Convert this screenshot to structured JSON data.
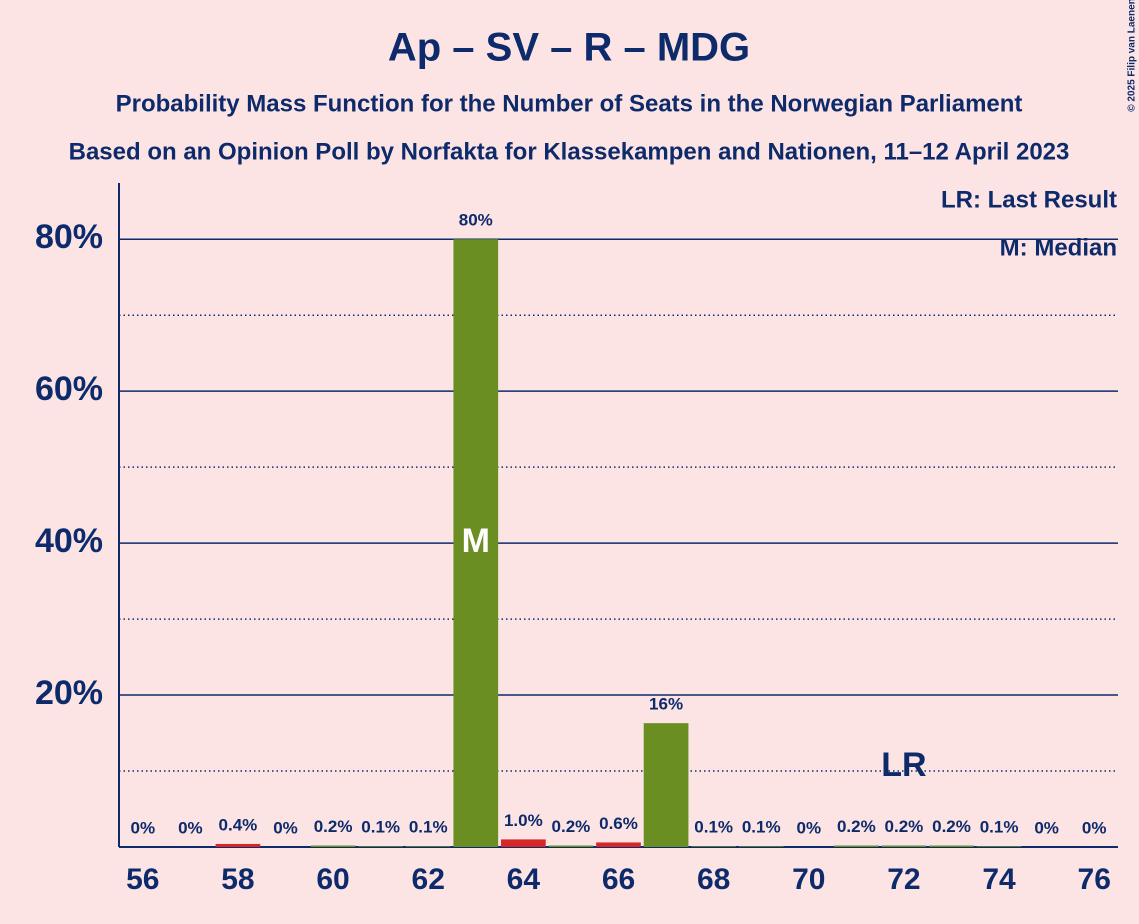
{
  "chart_data": {
    "type": "bar",
    "title": "Ap – SV – R – MDG",
    "subtitle": "Probability Mass Function for the Number of Seats in the Norwegian Parliament",
    "source": "Based on an Opinion Poll by Norfakta for Klassekampen and Nationen, 11–12 April 2023",
    "copyright": "© 2025 Filip van Laenen",
    "x": [
      56,
      57,
      58,
      59,
      60,
      61,
      62,
      63,
      64,
      65,
      66,
      67,
      68,
      69,
      70,
      71,
      72,
      73,
      74,
      75,
      76
    ],
    "values": [
      0,
      0,
      0.4,
      0,
      0.2,
      0.1,
      0.1,
      80,
      1.0,
      0.2,
      0.6,
      16.3,
      0.1,
      0.1,
      0,
      0.2,
      0.2,
      0.2,
      0.1,
      0,
      0
    ],
    "value_labels": [
      "0%",
      "0%",
      "0.4%",
      "0%",
      "0.2%",
      "0.1%",
      "0.1%",
      "80%",
      "1.0%",
      "0.2%",
      "0.6%",
      "16%",
      "0.1%",
      "0.1%",
      "0%",
      "0.2%",
      "0.2%",
      "0.2%",
      "0.1%",
      "0%",
      "0%"
    ],
    "colors": [
      "#6b8e23",
      "#6b8e23",
      "#d62728",
      "#6b8e23",
      "#6b8e23",
      "#6b8e23",
      "#6b8e23",
      "#6b8e23",
      "#d62728",
      "#6b8e23",
      "#d62728",
      "#6b8e23",
      "#6b8e23",
      "#6b8e23",
      "#6b8e23",
      "#6b8e23",
      "#6b8e23",
      "#6b8e23",
      "#6b8e23",
      "#6b8e23",
      "#6b8e23"
    ],
    "xlim": [
      55.5,
      76.5
    ],
    "xticks": [
      56,
      58,
      60,
      62,
      64,
      66,
      68,
      70,
      72,
      74,
      76
    ],
    "ylim": [
      0,
      87.4
    ],
    "yticks": [
      {
        "value": 20,
        "label": "20%"
      },
      {
        "value": 40,
        "label": "40%"
      },
      {
        "value": 60,
        "label": "60%"
      },
      {
        "value": 80,
        "label": "80%"
      }
    ],
    "minor_yticks": [
      10,
      30,
      50,
      70
    ],
    "grid": true,
    "median": 63,
    "median_label": "M",
    "last_result": 72,
    "last_result_label": "LR",
    "legend": [
      "LR: Last Result",
      "M: Median"
    ]
  }
}
